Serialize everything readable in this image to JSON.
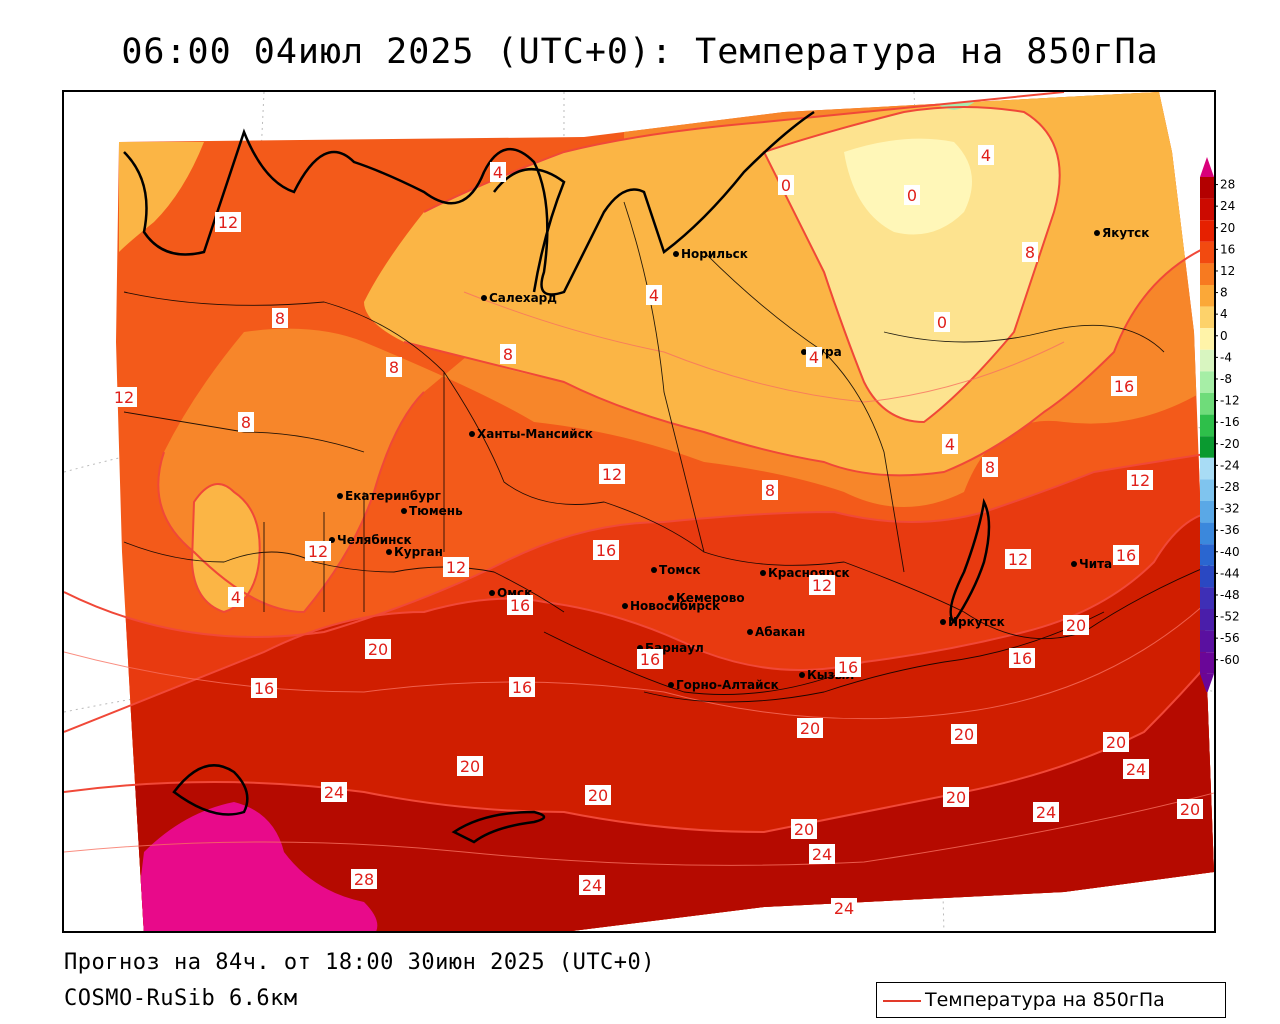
{
  "title": "06:00 04июл 2025 (UTC+0): Температура на 850гПа",
  "forecast_line": "Прогноз на 84ч. от 18:00 30июн 2025 (UTC+0)",
  "model_line": "COSMO-RuSib 6.6км",
  "legend": {
    "series_label": "Температура на 850гПа",
    "line_color": "#e23a2a"
  },
  "colorbar": {
    "ticks": [
      "28",
      "24",
      "20",
      "16",
      "12",
      "8",
      "4",
      "0",
      "-4",
      "-8",
      "-12",
      "-16",
      "-20",
      "-24",
      "-28",
      "-32",
      "-36",
      "-40",
      "-44",
      "-48",
      "-52",
      "-56",
      "-60"
    ],
    "colors": [
      "#d9007a",
      "#b30000",
      "#cc0a00",
      "#e62000",
      "#f24a10",
      "#f77a20",
      "#fba838",
      "#fdd26a",
      "#fff3a8",
      "#d8f5c0",
      "#a6eea6",
      "#6fdc7a",
      "#2ebf4a",
      "#0a9a30",
      "#a8dcf5",
      "#7fc4ee",
      "#5aa8e6",
      "#3b88dc",
      "#2a66d0",
      "#2a48c2",
      "#3e2fb6",
      "#4a1eaa",
      "#5a10a0",
      "#6a0698"
    ]
  },
  "cities": [
    {
      "name": "Норильск"
    },
    {
      "name": "Салехард"
    },
    {
      "name": "Якутск"
    },
    {
      "name": "Тура"
    },
    {
      "name": "Ханты-Мансийск"
    },
    {
      "name": "Екатеринбург"
    },
    {
      "name": "Тюмень"
    },
    {
      "name": "Челябинск"
    },
    {
      "name": "Курган"
    },
    {
      "name": "Омск"
    },
    {
      "name": "Новосибирск"
    },
    {
      "name": "Томск"
    },
    {
      "name": "Кемерово"
    },
    {
      "name": "Красноярск"
    },
    {
      "name": "Барнаул"
    },
    {
      "name": "Абакан"
    },
    {
      "name": "Горно-Алтайск"
    },
    {
      "name": "Кызыл"
    },
    {
      "name": "Иркутск"
    },
    {
      "name": "Чита"
    }
  ],
  "isotherm_labels": [
    "0",
    "0",
    "0",
    "4",
    "4",
    "4",
    "4",
    "4",
    "4",
    "8",
    "8",
    "8",
    "8",
    "8",
    "8",
    "8",
    "12",
    "12",
    "12",
    "12",
    "12",
    "12",
    "12",
    "12",
    "16",
    "16",
    "16",
    "16",
    "16",
    "16",
    "16",
    "16",
    "16",
    "20",
    "20",
    "20",
    "20",
    "20",
    "20",
    "20",
    "20",
    "20",
    "20",
    "24",
    "24",
    "24",
    "24",
    "24",
    "24",
    "28"
  ],
  "colors": {
    "t28": "#e80a8a",
    "t24": "#b50a00",
    "t20": "#d01e00",
    "t16": "#e83a10",
    "t12": "#f35a1a",
    "t8": "#f7862a",
    "t4": "#fbb545",
    "t0": "#fde38f",
    "tm4": "#fff7b8",
    "green": "#a8ecb0",
    "isoline": "#f04838",
    "border": "#000000"
  }
}
